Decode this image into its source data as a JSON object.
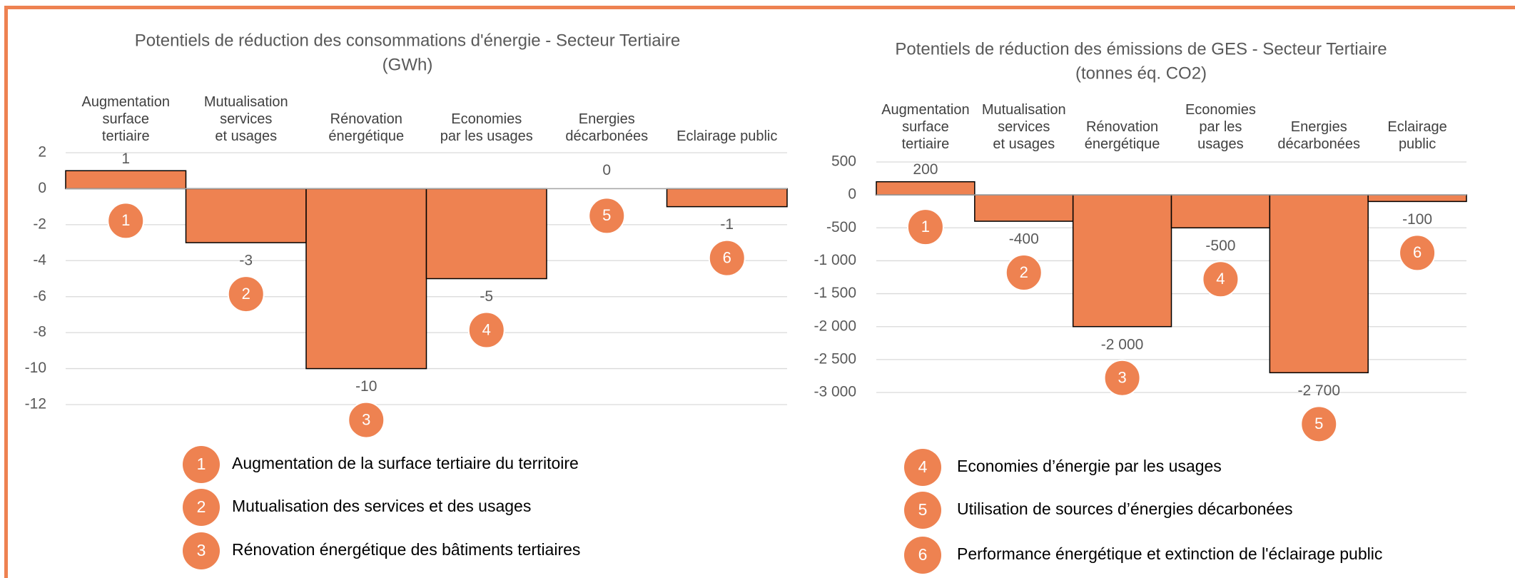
{
  "chart_data": [
    {
      "type": "bar",
      "title": "Potentiels de réduction des consommations d'énergie - Secteur Tertiaire",
      "subtitle": "(GWh)",
      "categories": [
        "Augmentation\nsurface\ntertiaire",
        "Mutualisation\nservices\net usages",
        "Rénovation\nénergétique",
        "Economies\npar les usages",
        "Energies\ndécarbonées",
        "Eclairage public"
      ],
      "values": [
        1,
        -3,
        -10,
        -5,
        0,
        -1
      ],
      "bar_markers": [
        "1",
        "2",
        "3",
        "4",
        "5",
        "6"
      ],
      "color": "#ee8251",
      "ylim": [
        -12,
        2
      ],
      "yticks": [
        2,
        0,
        -2,
        -4,
        -6,
        -8,
        -10,
        -12
      ],
      "grid": true
    },
    {
      "type": "bar",
      "title": "Potentiels de réduction des émissions de GES - Secteur Tertiaire",
      "subtitle": "(tonnes éq. CO2)",
      "categories": [
        "Augmentation\nsurface\ntertiaire",
        "Mutualisation\nservices\net usages",
        "Rénovation\nénergétique",
        "Economies\npar les\nusages",
        "Energies\ndécarbonées",
        "Eclairage\npublic"
      ],
      "values": [
        200,
        -400,
        -2000,
        -500,
        -2700,
        -100
      ],
      "value_labels": [
        "200",
        "-400",
        "-2 000",
        "-500",
        "-2 700",
        "-100"
      ],
      "bar_markers": [
        "1",
        "2",
        "3",
        "4",
        "5",
        "6"
      ],
      "color": "#ee8251",
      "ylim": [
        -3000,
        500
      ],
      "yticks": [
        500,
        0,
        -500,
        {
          "value": -1000,
          "label": "-1 000"
        },
        {
          "value": -1500,
          "label": "-1 500"
        },
        {
          "value": -2000,
          "label": "-2 000"
        },
        {
          "value": -2500,
          "label": "-2 500"
        },
        {
          "value": -3000,
          "label": "-3 000"
        }
      ],
      "grid": true
    }
  ],
  "legend": [
    {
      "number": "1",
      "label": "Augmentation de la surface tertiaire du territoire"
    },
    {
      "number": "2",
      "label": "Mutualisation des services et des usages"
    },
    {
      "number": "3",
      "label": "Rénovation énergétique des bâtiments tertiaires"
    },
    {
      "number": "4",
      "label": "Economies d’énergie par les usages"
    },
    {
      "number": "5",
      "label": "Utilisation de sources d’énergies décarbonées"
    },
    {
      "number": "6",
      "label": "Performance énergétique et extinction de l'éclairage public"
    }
  ]
}
